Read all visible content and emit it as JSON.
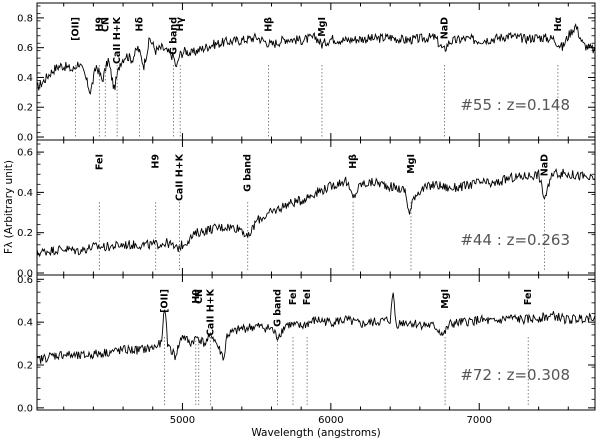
{
  "chart_data": {
    "type": "line",
    "xlabel": "Wavelength (angstroms)",
    "ylabel": "Fλ (Arbitrary unit)",
    "x_ticks": [
      5000,
      6000,
      7000
    ],
    "xlim": [
      4020,
      7780
    ],
    "grid": false,
    "panels": [
      {
        "label": "#55 : z=0.148",
        "ylim": [
          -0.02,
          0.9
        ],
        "y_ticks": [
          "0.0",
          "0.2",
          "0.4",
          "0.6",
          "0.8"
        ],
        "y_tick_values": [
          0.0,
          0.2,
          0.4,
          0.6,
          0.8
        ],
        "series": [
          {
            "x": [
              4020,
              4060,
              4100,
              4140,
              4180,
              4220,
              4260,
              4300,
              4340,
              4380,
              4420,
              4460,
              4500,
              4540,
              4580,
              4620,
              4660,
              4700,
              4740,
              4780,
              4820,
              4860,
              4900,
              4940,
              4960,
              4980,
              5020,
              5060,
              5100,
              5200,
              5300,
              5400,
              5500,
              5600,
              5700,
              5800,
              5900,
              5940,
              6000,
              6100,
              6200,
              6300,
              6400,
              6500,
              6600,
              6700,
              6760,
              6800,
              6900,
              7000,
              7100,
              7200,
              7300,
              7400,
              7500,
              7560,
              7600,
              7650,
              7700,
              7780
            ],
            "y": [
              0.33,
              0.37,
              0.42,
              0.46,
              0.48,
              0.47,
              0.45,
              0.5,
              0.42,
              0.3,
              0.48,
              0.38,
              0.52,
              0.32,
              0.5,
              0.55,
              0.52,
              0.6,
              0.48,
              0.66,
              0.58,
              0.6,
              0.57,
              0.54,
              0.46,
              0.55,
              0.58,
              0.56,
              0.58,
              0.62,
              0.64,
              0.65,
              0.67,
              0.62,
              0.66,
              0.65,
              0.67,
              0.62,
              0.66,
              0.65,
              0.66,
              0.66,
              0.67,
              0.65,
              0.66,
              0.67,
              0.58,
              0.64,
              0.66,
              0.65,
              0.66,
              0.68,
              0.66,
              0.67,
              0.66,
              0.6,
              0.68,
              0.75,
              0.62,
              0.58
            ]
          }
        ],
        "lines": [
          {
            "label": "[OII]",
            "x": 4280
          },
          {
            "label": "H9",
            "x": 4440
          },
          {
            "label": "CN",
            "x": 4480
          },
          {
            "label": "CaII H+K",
            "x": 4560
          },
          {
            "label": "Hδ",
            "x": 4710
          },
          {
            "label": "G band",
            "x": 4940
          },
          {
            "label": "Hγ",
            "x": 4985
          },
          {
            "label": "Hβ",
            "x": 5580
          },
          {
            "label": "MgI",
            "x": 5940
          },
          {
            "label": "NaD",
            "x": 6765
          },
          {
            "label": "Hα",
            "x": 7530
          }
        ]
      },
      {
        "label": "#44 : z=0.263",
        "ylim": [
          -0.01,
          0.66
        ],
        "y_ticks": [
          "0.0",
          "0.2",
          "0.4",
          "0.6"
        ],
        "y_tick_values": [
          0.0,
          0.2,
          0.4,
          0.6
        ],
        "series": [
          {
            "x": [
              4020,
              4100,
              4200,
              4300,
              4400,
              4500,
              4600,
              4700,
              4800,
              4900,
              4960,
              5000,
              5050,
              5100,
              5200,
              5300,
              5400,
              5440,
              5500,
              5600,
              5700,
              5800,
              5900,
              6000,
              6100,
              6150,
              6200,
              6300,
              6400,
              6500,
              6530,
              6560,
              6600,
              6700,
              6800,
              6900,
              7000,
              7100,
              7200,
              7300,
              7400,
              7440,
              7500,
              7600,
              7700,
              7780
            ],
            "y": [
              0.1,
              0.11,
              0.12,
              0.11,
              0.13,
              0.13,
              0.14,
              0.14,
              0.14,
              0.15,
              0.12,
              0.14,
              0.17,
              0.2,
              0.22,
              0.23,
              0.22,
              0.17,
              0.26,
              0.3,
              0.34,
              0.36,
              0.4,
              0.43,
              0.46,
              0.37,
              0.44,
              0.45,
              0.43,
              0.41,
              0.29,
              0.38,
              0.41,
              0.44,
              0.42,
              0.43,
              0.45,
              0.44,
              0.47,
              0.48,
              0.49,
              0.37,
              0.5,
              0.49,
              0.48,
              0.46
            ]
          }
        ],
        "lines": [
          {
            "label": "FeI",
            "x": 4440
          },
          {
            "label": "H9",
            "x": 4820
          },
          {
            "label": "CaII H+K",
            "x": 4980
          },
          {
            "label": "G band",
            "x": 5440
          },
          {
            "label": "Hβ",
            "x": 6150
          },
          {
            "label": "MgI",
            "x": 6540
          },
          {
            "label": "NaD",
            "x": 7440
          }
        ]
      },
      {
        "label": "#72 : z=0.308",
        "ylim": [
          -0.01,
          0.62
        ],
        "y_ticks": [
          "0.0",
          "0.2",
          "0.4",
          "0.6"
        ],
        "y_tick_values": [
          0.0,
          0.2,
          0.4,
          0.6
        ],
        "series": [
          {
            "x": [
              4020,
              4100,
              4200,
              4300,
              4400,
              4500,
              4600,
              4700,
              4800,
              4860,
              4880,
              4900,
              4950,
              5000,
              5050,
              5100,
              5150,
              5200,
              5280,
              5300,
              5400,
              5500,
              5600,
              5640,
              5700,
              5800,
              5900,
              6000,
              6100,
              6200,
              6300,
              6400,
              6420,
              6440,
              6500,
              6600,
              6700,
              6760,
              6800,
              6900,
              7000,
              7100,
              7200,
              7300,
              7400,
              7500,
              7600,
              7700,
              7780
            ],
            "y": [
              0.22,
              0.24,
              0.25,
              0.24,
              0.25,
              0.26,
              0.27,
              0.27,
              0.28,
              0.3,
              0.48,
              0.3,
              0.24,
              0.34,
              0.3,
              0.33,
              0.3,
              0.34,
              0.23,
              0.34,
              0.37,
              0.38,
              0.37,
              0.33,
              0.39,
              0.38,
              0.41,
              0.4,
              0.41,
              0.39,
              0.4,
              0.41,
              0.54,
              0.39,
              0.4,
              0.39,
              0.38,
              0.34,
              0.39,
              0.4,
              0.41,
              0.4,
              0.42,
              0.41,
              0.42,
              0.43,
              0.41,
              0.42,
              0.43
            ]
          }
        ],
        "lines": [
          {
            "label": "[OII]",
            "x": 4880
          },
          {
            "label": "H9",
            "x": 5090
          },
          {
            "label": "CN",
            "x": 5110
          },
          {
            "label": "CaII H+K",
            "x": 5190
          },
          {
            "label": "G band",
            "x": 5640
          },
          {
            "label": "FeI",
            "x": 5745
          },
          {
            "label": "FeI",
            "x": 5840
          },
          {
            "label": "MgI",
            "x": 6770
          },
          {
            "label": "FeI",
            "x": 7330
          }
        ]
      }
    ]
  }
}
